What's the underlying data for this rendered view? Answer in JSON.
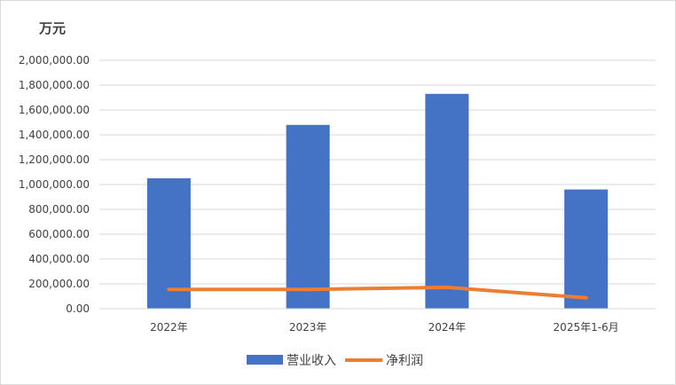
{
  "chart_data": {
    "type": "bar",
    "unit_label": "万元",
    "categories": [
      "2022年",
      "2023年",
      "2024年",
      "2025年1-6月"
    ],
    "series": [
      {
        "name": "营业收入",
        "type": "bar",
        "color": "#4472C4",
        "values": [
          1050000,
          1480000,
          1730000,
          960000
        ]
      },
      {
        "name": "净利润",
        "type": "line",
        "color": "#ED7D31",
        "values": [
          155000,
          155000,
          172000,
          88000
        ]
      }
    ],
    "ylim": [
      0,
      2000000
    ],
    "yticks": [
      "0.00",
      "200,000.00",
      "400,000.00",
      "600,000.00",
      "800,000.00",
      "1,000,000.00",
      "1,200,000.00",
      "1,400,000.00",
      "1,600,000.00",
      "1,800,000.00",
      "2,000,000.00"
    ],
    "grid": true,
    "legend_position": "bottom"
  }
}
